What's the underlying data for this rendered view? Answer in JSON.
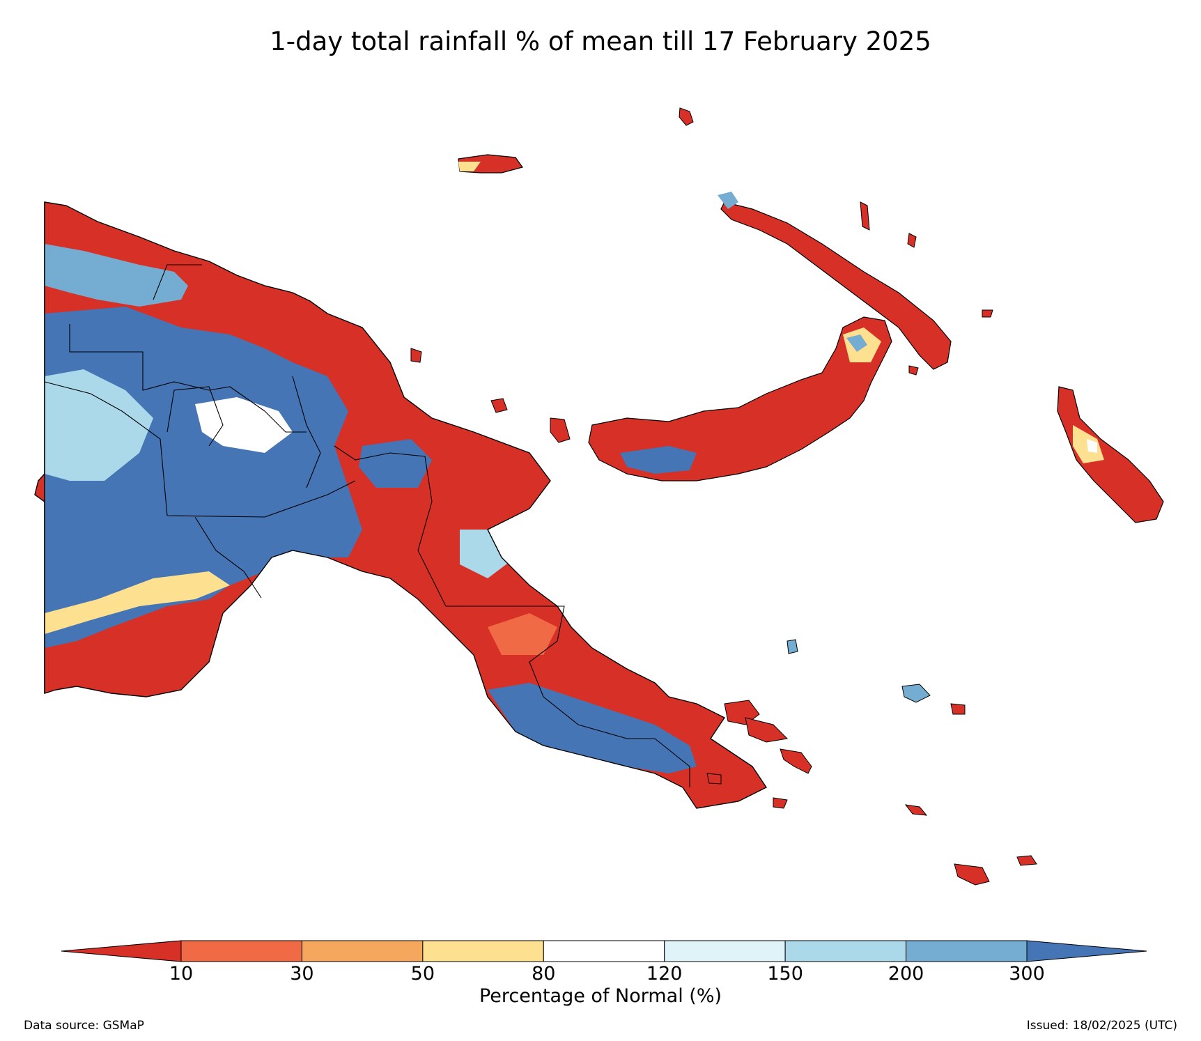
{
  "title": "1-day total rainfall % of mean till 17 February 2025",
  "colorbar": {
    "label": "Percentage of Normal (%)",
    "ticks": [
      "10",
      "30",
      "50",
      "80",
      "120",
      "150",
      "200",
      "300"
    ],
    "bins": [
      {
        "range": "<10",
        "color": "#d73027"
      },
      {
        "range": "10-30",
        "color": "#f06a45"
      },
      {
        "range": "30-50",
        "color": "#f6a75e"
      },
      {
        "range": "50-80",
        "color": "#fde090"
      },
      {
        "range": "80-120",
        "color": "#ffffff"
      },
      {
        "range": "120-150",
        "color": "#e0f3f8"
      },
      {
        "range": "150-200",
        "color": "#abd9e9"
      },
      {
        "range": "200-300",
        "color": "#74add1"
      },
      {
        "range": ">300",
        "color": "#4575b4"
      }
    ]
  },
  "footer": {
    "source": "Data source: GSMaP",
    "issued": "Issued: 18/02/2025 (UTC)"
  }
}
